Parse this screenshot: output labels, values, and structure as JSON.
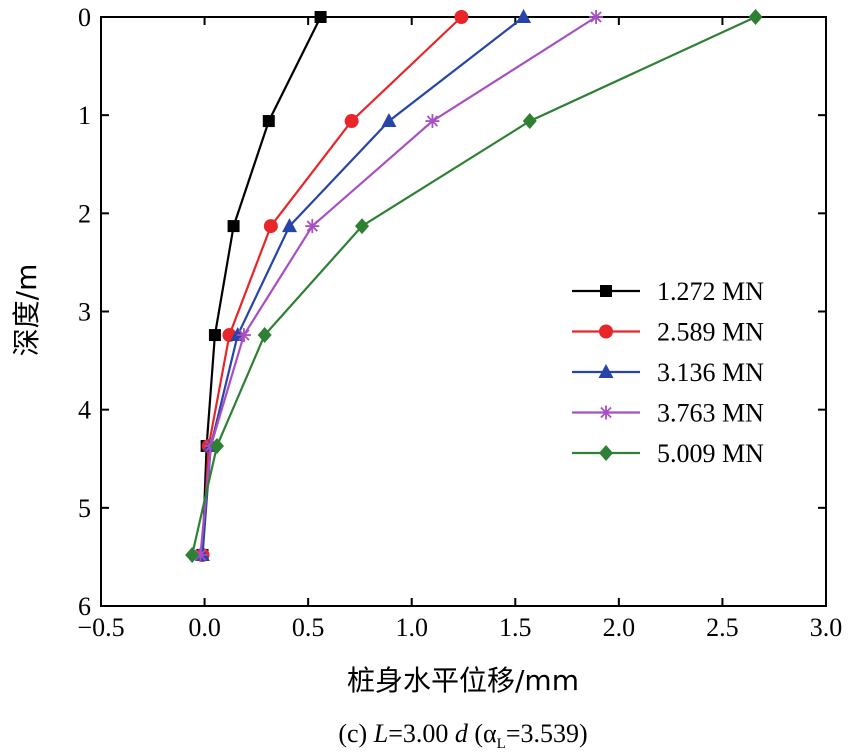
{
  "chart_data": {
    "type": "line",
    "xlabel": "桩身水平位移/mm",
    "ylabel": "深度/m",
    "caption": "(c) L=3.00 d (α_L=3.539)",
    "xlim": [
      -0.5,
      3.0
    ],
    "ylim": [
      6,
      0
    ],
    "y_inverted": true,
    "xticks": [
      -0.5,
      0.0,
      0.5,
      1.0,
      1.5,
      2.0,
      2.5,
      3.0
    ],
    "xtick_labels": [
      "−0.5",
      "0.0",
      "0.5",
      "1.0",
      "1.5",
      "2.0",
      "2.5",
      "3.0"
    ],
    "yticks": [
      0,
      1,
      2,
      3,
      4,
      5,
      6
    ],
    "ytick_labels": [
      "0",
      "1",
      "2",
      "3",
      "4",
      "5",
      "6"
    ],
    "grid": false,
    "legend_position": "right-middle",
    "y": [
      0,
      1.06,
      2.13,
      3.24,
      4.37,
      5.48
    ],
    "series": [
      {
        "name": "1.272 MN",
        "color": "#000000",
        "marker": "square",
        "x": [
          0.56,
          0.31,
          0.14,
          0.05,
          0.01,
          -0.01
        ]
      },
      {
        "name": "2.589 MN",
        "color": "#e8262a",
        "marker": "circle",
        "x": [
          1.24,
          0.71,
          0.32,
          0.12,
          0.02,
          -0.01
        ]
      },
      {
        "name": "3.136 MN",
        "color": "#2745a8",
        "marker": "triangle",
        "x": [
          1.54,
          0.89,
          0.41,
          0.16,
          0.03,
          -0.01
        ]
      },
      {
        "name": "3.763 MN",
        "color": "#a84fc2",
        "marker": "star",
        "x": [
          1.89,
          1.1,
          0.52,
          0.19,
          0.03,
          -0.02
        ]
      },
      {
        "name": "5.009 MN",
        "color": "#2e8034",
        "marker": "diamond",
        "x": [
          2.66,
          1.57,
          0.76,
          0.29,
          0.06,
          -0.06
        ]
      }
    ]
  }
}
